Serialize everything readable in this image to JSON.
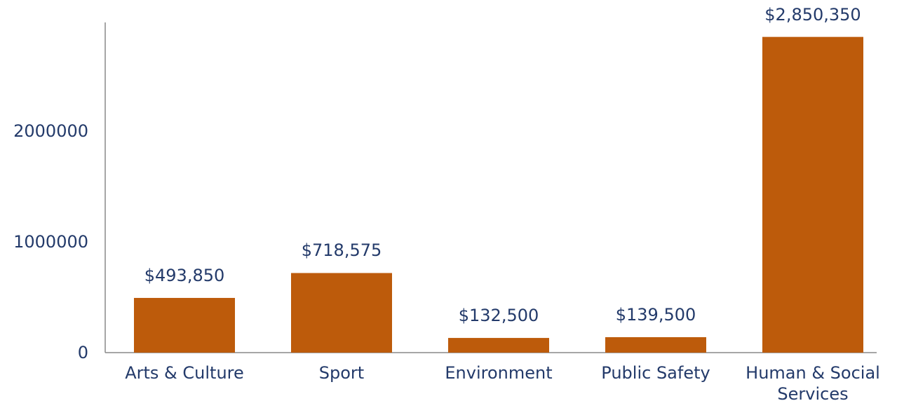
{
  "chart_data": {
    "type": "bar",
    "categories": [
      "Arts & Culture",
      "Sport",
      "Environment",
      "Public Safety",
      "Human & Social Services"
    ],
    "values": [
      493850,
      718575,
      132500,
      139500,
      2850350
    ],
    "value_labels": [
      "$493,850",
      "$718,575",
      "$132,500",
      "$139,500",
      "$2,850,350"
    ],
    "color": "#bd5b0b",
    "ylim": [
      0,
      3000000
    ],
    "yticks": [
      0,
      1000000,
      2000000
    ],
    "grid": false
  }
}
